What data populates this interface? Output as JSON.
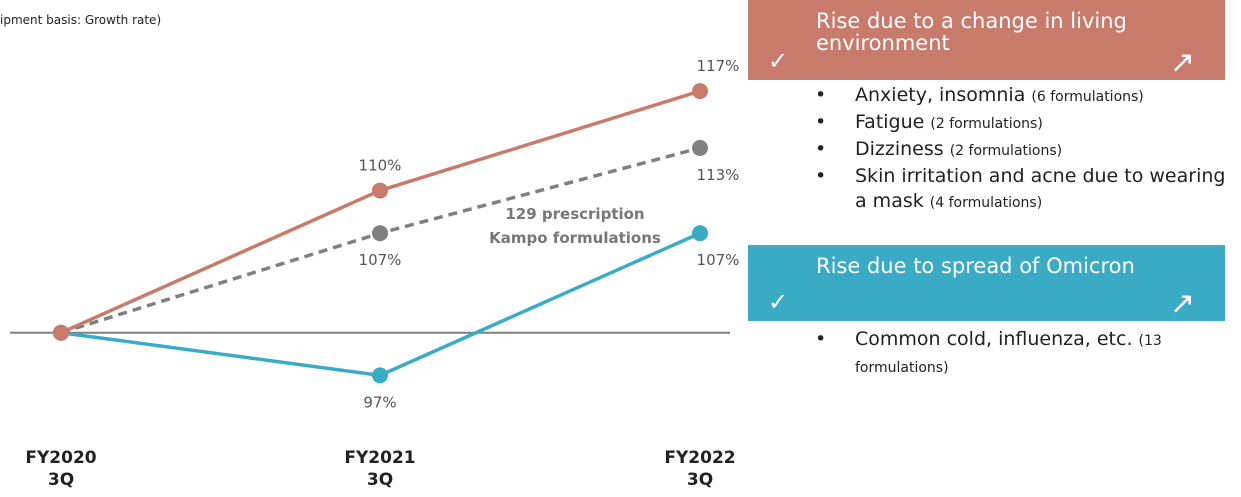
{
  "chart_data": {
    "type": "line",
    "subtitle": "ipment basis: Growth rate)",
    "categories": [
      "FY2020\n3Q",
      "FY2021\n3Q",
      "FY2022\n3Q"
    ],
    "ylim": [
      94,
      122
    ],
    "baseline": 100,
    "series": [
      {
        "color": "#c97b6b",
        "values": [
          100,
          110,
          117
        ],
        "value_labels": [
          null,
          "110%",
          "117%"
        ]
      },
      {
        "name": "129 prescription\nKampo formulations",
        "color": "#808080",
        "dashed": true,
        "values": [
          100,
          107,
          113
        ],
        "value_labels": [
          null,
          "107%",
          "113%"
        ]
      },
      {
        "color": "#3aabc4",
        "values": [
          100,
          97,
          107
        ],
        "value_labels": [
          null,
          "97%",
          "107%"
        ]
      }
    ]
  },
  "panels": [
    {
      "title": "Rise due to a change in living environment",
      "color": "#c97b6b",
      "items": [
        {
          "text": "Anxiety, insomnia",
          "note": "(6 formulations)"
        },
        {
          "text": "Fatigue",
          "note": "(2 formulations)"
        },
        {
          "text": "Dizziness",
          "note": "(2 formulations)"
        },
        {
          "text": "Skin irritation and acne due to wearing a mask",
          "note": "(4 formulations)"
        }
      ]
    },
    {
      "title": "Rise due to spread of Omicron",
      "color": "#3aabc4",
      "items": [
        {
          "text": "Common cold, influenza, etc.",
          "note": "(13 formulations)"
        }
      ]
    }
  ]
}
